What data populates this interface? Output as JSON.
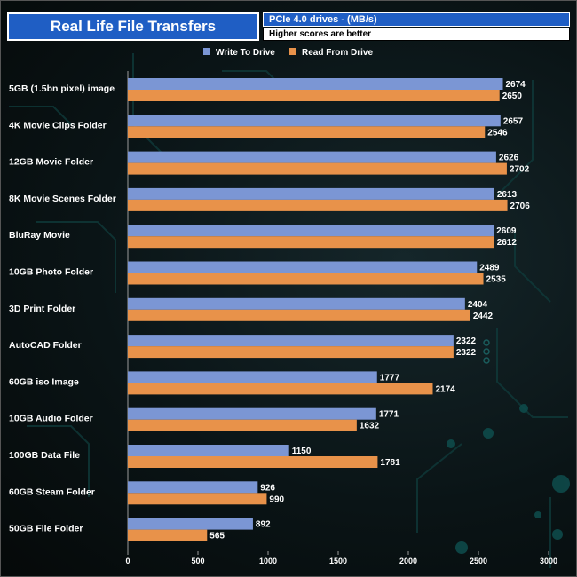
{
  "header": {
    "title": "Real Life File Transfers",
    "subtitle": "PCIe 4.0 drives - (MB/s)",
    "note": "Higher scores are better"
  },
  "colors": {
    "write": "#7b96d4",
    "read": "#e8924a",
    "title_bg": "#1f5ec4"
  },
  "chart_data": {
    "type": "bar",
    "orientation": "horizontal",
    "title": "Real Life File Transfers",
    "subtitle": "PCIe 4.0 drives - (MB/s)",
    "categories": [
      "5GB (1.5bn pixel) image",
      "4K Movie Clips Folder",
      "12GB Movie Folder",
      "8K Movie Scenes Folder",
      "BluRay Movie",
      "10GB Photo Folder",
      "3D Print Folder",
      "AutoCAD Folder",
      "60GB iso Image",
      "10GB Audio Folder",
      "100GB Data File",
      "60GB Steam Folder",
      "50GB File Folder"
    ],
    "series": [
      {
        "name": "Write To  Drive",
        "values": [
          2674,
          2657,
          2626,
          2613,
          2609,
          2489,
          2404,
          2322,
          1777,
          1771,
          1150,
          926,
          892
        ]
      },
      {
        "name": "Read From  Drive",
        "values": [
          2650,
          2546,
          2702,
          2706,
          2612,
          2535,
          2442,
          2322,
          2174,
          1632,
          1781,
          990,
          565
        ]
      }
    ],
    "xlim": [
      0,
      3000
    ],
    "xticks": [
      0,
      500,
      1000,
      1500,
      2000,
      2500,
      3000
    ],
    "xlabel": "",
    "ylabel": "",
    "legend": "top-center",
    "grid": false
  }
}
